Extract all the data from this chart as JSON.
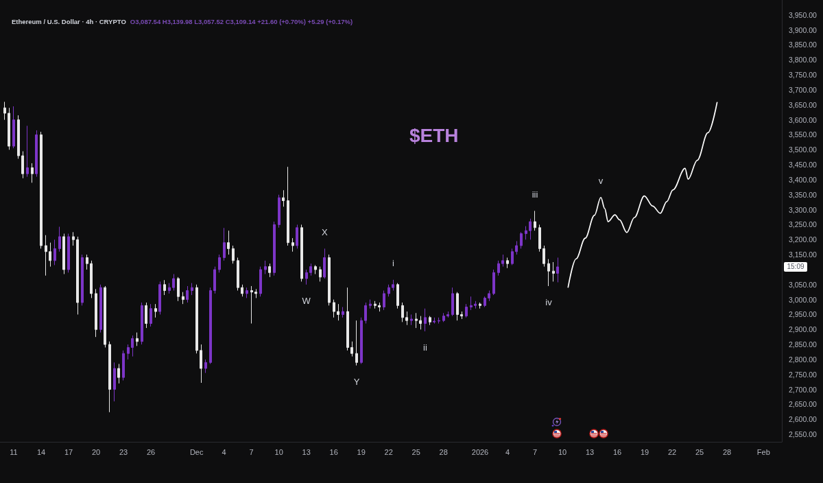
{
  "chart_data": {
    "type": "candlestick",
    "title": "Ethereum / U.S. Dollar · 4h · CRYPTO",
    "subtitle": "O3,087.54 H3,139.98 L3,057.52 C3,109.14 +21.60 (+0.70%) +5.29 (+0.17%)",
    "xlim": [
      "2025-11-09T12:00",
      "2026-02-03T00:00"
    ],
    "ylim": [
      2525,
      4000
    ],
    "xticks": [
      {
        "value": "2025-11-11",
        "label": "11"
      },
      {
        "value": "2025-11-14",
        "label": "14"
      },
      {
        "value": "2025-11-17",
        "label": "17"
      },
      {
        "value": "2025-11-20",
        "label": "20"
      },
      {
        "value": "2025-11-23",
        "label": "23"
      },
      {
        "value": "2025-11-26",
        "label": "26"
      },
      {
        "value": "2025-12-01",
        "label": "Dec"
      },
      {
        "value": "2025-12-04",
        "label": "4"
      },
      {
        "value": "2025-12-07",
        "label": "7"
      },
      {
        "value": "2025-12-10",
        "label": "10"
      },
      {
        "value": "2025-12-13",
        "label": "13"
      },
      {
        "value": "2025-12-16",
        "label": "16"
      },
      {
        "value": "2025-12-19",
        "label": "19"
      },
      {
        "value": "2025-12-22",
        "label": "22"
      },
      {
        "value": "2025-12-25",
        "label": "25"
      },
      {
        "value": "2025-12-28",
        "label": "28"
      },
      {
        "value": "2026-01-01",
        "label": "2026"
      },
      {
        "value": "2026-01-04",
        "label": "4"
      },
      {
        "value": "2026-01-07",
        "label": "7"
      },
      {
        "value": "2026-01-10",
        "label": "10"
      },
      {
        "value": "2026-01-13",
        "label": "13"
      },
      {
        "value": "2026-01-16",
        "label": "16"
      },
      {
        "value": "2026-01-19",
        "label": "19"
      },
      {
        "value": "2026-01-22",
        "label": "22"
      },
      {
        "value": "2026-01-25",
        "label": "25"
      },
      {
        "value": "2026-01-28",
        "label": "28"
      },
      {
        "value": "2026-02-01",
        "label": "Feb"
      }
    ],
    "yticks": [
      {
        "value": 2550,
        "label": "2,550.00"
      },
      {
        "value": 2600,
        "label": "2,600.00"
      },
      {
        "value": 2650,
        "label": "2,650.00"
      },
      {
        "value": 2700,
        "label": "2,700.00"
      },
      {
        "value": 2750,
        "label": "2,750.00"
      },
      {
        "value": 2800,
        "label": "2,800.00"
      },
      {
        "value": 2850,
        "label": "2,850.00"
      },
      {
        "value": 2900,
        "label": "2,900.00"
      },
      {
        "value": 2950,
        "label": "2,950.00"
      },
      {
        "value": 3000,
        "label": "3,000.00"
      },
      {
        "value": 3050,
        "label": "3,050.00"
      },
      {
        "value": 3150,
        "label": "3,150.00"
      },
      {
        "value": 3200,
        "label": "3,200.00"
      },
      {
        "value": 3250,
        "label": "3,250.00"
      },
      {
        "value": 3300,
        "label": "3,300.00"
      },
      {
        "value": 3350,
        "label": "3,350.00"
      },
      {
        "value": 3400,
        "label": "3,400.00"
      },
      {
        "value": 3450,
        "label": "3,450.00"
      },
      {
        "value": 3500,
        "label": "3,500.00"
      },
      {
        "value": 3550,
        "label": "3,550.00"
      },
      {
        "value": 3600,
        "label": "3,600.00"
      },
      {
        "value": 3650,
        "label": "3,650.00"
      },
      {
        "value": 3700,
        "label": "3,700.00"
      },
      {
        "value": 3750,
        "label": "3,750.00"
      },
      {
        "value": 3800,
        "label": "3,800.00"
      },
      {
        "value": 3850,
        "label": "3,850.00"
      },
      {
        "value": 3900,
        "label": "3,900.00"
      },
      {
        "value": 3950,
        "label": "3,950.00"
      }
    ],
    "grid": false,
    "marker": "none",
    "line_style": "solid",
    "series": [
      {
        "x": [
          "2025-11-10T00:00",
          "2025-11-10T12:00",
          "2025-11-11T00:00",
          "2025-11-11T12:00",
          "2025-11-12T00:00",
          "2025-11-12T12:00",
          "2025-11-13T00:00",
          "2025-11-13T12:00",
          "2025-11-14T00:00",
          "2025-11-14T12:00",
          "2025-11-15T00:00",
          "2025-11-15T12:00",
          "2025-11-16T00:00",
          "2025-11-16T12:00",
          "2025-11-17T00:00",
          "2025-11-17T12:00",
          "2025-11-18T00:00",
          "2025-11-18T12:00",
          "2025-11-19T00:00",
          "2025-11-19T12:00",
          "2025-11-20T00:00",
          "2025-11-20T12:00",
          "2025-11-21T00:00",
          "2025-11-21T12:00",
          "2025-11-22T00:00",
          "2025-11-22T12:00",
          "2025-11-23T00:00",
          "2025-11-23T12:00",
          "2025-11-24T00:00",
          "2025-11-24T12:00",
          "2025-11-25T00:00",
          "2025-11-25T12:00",
          "2025-11-26T00:00",
          "2025-11-26T12:00",
          "2025-11-27T00:00",
          "2025-11-27T12:00",
          "2025-11-28T00:00",
          "2025-11-28T12:00",
          "2025-11-29T00:00",
          "2025-11-29T12:00",
          "2025-11-30T00:00",
          "2025-11-30T12:00",
          "2025-12-01T00:00",
          "2025-12-01T12:00",
          "2025-12-02T00:00",
          "2025-12-02T12:00",
          "2025-12-03T00:00",
          "2025-12-03T12:00",
          "2025-12-04T00:00",
          "2025-12-04T12:00",
          "2025-12-05T00:00",
          "2025-12-05T12:00",
          "2025-12-06T00:00",
          "2025-12-06T12:00",
          "2025-12-07T00:00",
          "2025-12-07T12:00",
          "2025-12-08T00:00",
          "2025-12-08T12:00",
          "2025-12-09T00:00",
          "2025-12-09T12:00",
          "2025-12-10T00:00",
          "2025-12-10T12:00",
          "2025-12-11T00:00",
          "2025-12-11T12:00",
          "2025-12-12T00:00",
          "2025-12-12T12:00",
          "2025-12-13T00:00",
          "2025-12-13T12:00",
          "2025-12-14T00:00",
          "2025-12-14T12:00",
          "2025-12-15T00:00",
          "2025-12-15T12:00",
          "2025-12-16T00:00",
          "2025-12-16T12:00",
          "2025-12-17T00:00",
          "2025-12-17T12:00",
          "2025-12-18T00:00",
          "2025-12-18T12:00",
          "2025-12-19T00:00",
          "2025-12-19T12:00",
          "2025-12-20T00:00",
          "2025-12-20T12:00",
          "2025-12-21T00:00",
          "2025-12-21T12:00",
          "2025-12-22T00:00",
          "2025-12-22T12:00",
          "2025-12-23T00:00",
          "2025-12-23T12:00",
          "2025-12-24T00:00",
          "2025-12-24T12:00",
          "2025-12-25T00:00",
          "2025-12-25T12:00",
          "2025-12-26T00:00",
          "2025-12-26T12:00",
          "2025-12-27T00:00",
          "2025-12-27T12:00",
          "2025-12-28T00:00",
          "2025-12-28T12:00",
          "2025-12-29T00:00",
          "2025-12-29T12:00",
          "2025-12-30T00:00",
          "2025-12-30T12:00",
          "2025-12-31T00:00",
          "2025-12-31T12:00",
          "2026-01-01T00:00",
          "2026-01-01T12:00",
          "2026-01-02T00:00",
          "2026-01-02T12:00",
          "2026-01-03T00:00",
          "2026-01-03T12:00",
          "2026-01-04T00:00",
          "2026-01-04T12:00",
          "2026-01-05T00:00",
          "2026-01-05T12:00",
          "2026-01-06T00:00",
          "2026-01-06T12:00",
          "2026-01-07T00:00",
          "2026-01-07T12:00",
          "2026-01-08T00:00",
          "2026-01-08T12:00",
          "2026-01-09T00:00",
          "2026-01-09T12:00"
        ],
        "ohlc": [
          [
            3640,
            3660,
            3600,
            3622
          ],
          [
            3622,
            3640,
            3500,
            3512
          ],
          [
            3512,
            3645,
            3505,
            3600
          ],
          [
            3600,
            3615,
            3470,
            3480
          ],
          [
            3480,
            3495,
            3405,
            3420
          ],
          [
            3420,
            3580,
            3410,
            3440
          ],
          [
            3440,
            3455,
            3390,
            3420
          ],
          [
            3420,
            3565,
            3410,
            3550
          ],
          [
            3550,
            3560,
            3170,
            3180
          ],
          [
            3180,
            3215,
            3080,
            3160
          ],
          [
            3160,
            3190,
            3110,
            3130
          ],
          [
            3130,
            3200,
            3115,
            3170
          ],
          [
            3170,
            3243,
            3160,
            3210
          ],
          [
            3210,
            3220,
            3085,
            3100
          ],
          [
            3100,
            3220,
            3090,
            3210
          ],
          [
            3210,
            3225,
            3180,
            3200
          ],
          [
            3200,
            3210,
            2950,
            2990
          ],
          [
            2990,
            3150,
            2980,
            3140
          ],
          [
            3140,
            3150,
            3100,
            3120
          ],
          [
            3120,
            3130,
            3005,
            3020
          ],
          [
            3020,
            3035,
            2875,
            2900
          ],
          [
            2900,
            3050,
            2890,
            3040
          ],
          [
            3040,
            3045,
            2840,
            2850
          ],
          [
            2850,
            2860,
            2624,
            2700
          ],
          [
            2700,
            2790,
            2660,
            2770
          ],
          [
            2770,
            2785,
            2720,
            2740
          ],
          [
            2740,
            2830,
            2730,
            2820
          ],
          [
            2820,
            2850,
            2800,
            2840
          ],
          [
            2840,
            2880,
            2810,
            2870
          ],
          [
            2870,
            2890,
            2845,
            2860
          ],
          [
            2860,
            2990,
            2850,
            2980
          ],
          [
            2980,
            2990,
            2905,
            2920
          ],
          [
            2920,
            2985,
            2910,
            2970
          ],
          [
            2970,
            2985,
            2940,
            2960
          ],
          [
            2960,
            3060,
            2950,
            3050
          ],
          [
            3050,
            3065,
            3015,
            3030
          ],
          [
            3030,
            3055,
            3020,
            3040
          ],
          [
            3040,
            3085,
            3030,
            3070
          ],
          [
            3070,
            3075,
            2995,
            3010
          ],
          [
            3010,
            3025,
            2985,
            3000
          ],
          [
            3000,
            3045,
            2990,
            3030
          ],
          [
            3030,
            3055,
            3015,
            3040
          ],
          [
            3040,
            3050,
            2820,
            2830
          ],
          [
            2830,
            2850,
            2722,
            2770
          ],
          [
            2770,
            2800,
            2755,
            2790
          ],
          [
            2790,
            3040,
            2785,
            3030
          ],
          [
            3030,
            3110,
            3020,
            3100
          ],
          [
            3100,
            3150,
            3090,
            3140
          ],
          [
            3140,
            3239,
            3130,
            3190
          ],
          [
            3190,
            3230,
            3150,
            3170
          ],
          [
            3170,
            3180,
            3120,
            3130
          ],
          [
            3130,
            3140,
            3030,
            3040
          ],
          [
            3040,
            3050,
            3010,
            3020
          ],
          [
            3020,
            3040,
            3005,
            3030
          ],
          [
            3030,
            3045,
            2920,
            3025
          ],
          [
            3025,
            3035,
            3005,
            3020
          ],
          [
            3020,
            3110,
            3010,
            3100
          ],
          [
            3100,
            3130,
            3085,
            3110
          ],
          [
            3110,
            3120,
            3075,
            3090
          ],
          [
            3090,
            3260,
            3080,
            3250
          ],
          [
            3250,
            3350,
            3240,
            3340
          ],
          [
            3340,
            3365,
            3310,
            3330
          ],
          [
            3330,
            3443,
            3180,
            3190
          ],
          [
            3190,
            3205,
            3160,
            3180
          ],
          [
            3180,
            3250,
            3170,
            3240
          ],
          [
            3240,
            3250,
            3060,
            3070
          ],
          [
            3070,
            3100,
            3050,
            3090
          ],
          [
            3090,
            3120,
            3080,
            3110
          ],
          [
            3110,
            3115,
            3085,
            3100
          ],
          [
            3100,
            3110,
            3060,
            3075
          ],
          [
            3075,
            3170,
            3070,
            3140
          ],
          [
            3140,
            3150,
            2980,
            2990
          ],
          [
            2990,
            3000,
            2940,
            2960
          ],
          [
            2960,
            2985,
            2930,
            2950
          ],
          [
            2950,
            2975,
            2940,
            2960
          ],
          [
            2960,
            3040,
            2830,
            2840
          ],
          [
            2840,
            2860,
            2810,
            2820
          ],
          [
            2820,
            2930,
            2780,
            2790
          ],
          [
            2790,
            2940,
            2785,
            2930
          ],
          [
            2930,
            2990,
            2920,
            2980
          ],
          [
            2980,
            3000,
            2970,
            2985
          ],
          [
            2985,
            2995,
            2970,
            2980
          ],
          [
            2980,
            2990,
            2960,
            2975
          ],
          [
            2975,
            3030,
            2965,
            3020
          ],
          [
            3020,
            3050,
            3010,
            3040
          ],
          [
            3040,
            3066,
            3030,
            3050
          ],
          [
            3050,
            3055,
            2970,
            2980
          ],
          [
            2980,
            2990,
            2925,
            2940
          ],
          [
            2940,
            2960,
            2915,
            2930
          ],
          [
            2930,
            2950,
            2915,
            2935
          ],
          [
            2935,
            2955,
            2905,
            2930
          ],
          [
            2930,
            2945,
            2900,
            2920
          ],
          [
            2920,
            2970,
            2894,
            2940
          ],
          [
            2940,
            2945,
            2915,
            2925
          ],
          [
            2925,
            2940,
            2920,
            2928
          ],
          [
            2928,
            2940,
            2920,
            2930
          ],
          [
            2930,
            2955,
            2925,
            2945
          ],
          [
            2945,
            2960,
            2940,
            2950
          ],
          [
            2950,
            3040,
            2945,
            3020
          ],
          [
            3020,
            3025,
            2930,
            2950
          ],
          [
            2950,
            2960,
            2935,
            2945
          ],
          [
            2945,
            2985,
            2940,
            2975
          ],
          [
            2975,
            3010,
            2965,
            2980
          ],
          [
            2980,
            2995,
            2970,
            2985
          ],
          [
            2985,
            2990,
            2970,
            2980
          ],
          [
            2980,
            3010,
            2975,
            3005
          ],
          [
            3005,
            3030,
            2995,
            3020
          ],
          [
            3020,
            3100,
            3015,
            3090
          ],
          [
            3090,
            3130,
            3080,
            3120
          ],
          [
            3120,
            3150,
            3110,
            3130
          ],
          [
            3130,
            3140,
            3105,
            3120
          ],
          [
            3120,
            3170,
            3115,
            3160
          ],
          [
            3160,
            3195,
            3150,
            3180
          ],
          [
            3180,
            3225,
            3170,
            3220
          ],
          [
            3220,
            3245,
            3200,
            3230
          ],
          [
            3230,
            3270,
            3200,
            3260
          ],
          [
            3260,
            3296,
            3230,
            3240
          ],
          [
            3240,
            3250,
            3160,
            3170
          ],
          [
            3170,
            3180,
            3110,
            3120
          ],
          [
            3120,
            3135,
            3045,
            3095
          ],
          [
            3095,
            3125,
            3060,
            3087.54
          ],
          [
            3087.54,
            3139.98,
            3057.52,
            3109.14
          ]
        ],
        "colors": [
          "#e8e8e8",
          "#e8e8e8",
          "#7d35c8",
          "#e8e8e8",
          "#e8e8e8",
          "#7d35c8",
          "#e8e8e8",
          "#7d35c8",
          "#e8e8e8",
          "#e8e8e8",
          "#e8e8e8",
          "#7d35c8",
          "#7d35c8",
          "#e8e8e8",
          "#7d35c8",
          "#e8e8e8",
          "#e8e8e8",
          "#7d35c8",
          "#e8e8e8",
          "#e8e8e8",
          "#e8e8e8",
          "#7d35c8",
          "#e8e8e8",
          "#e8e8e8",
          "#7d35c8",
          "#e8e8e8",
          "#7d35c8",
          "#7d35c8",
          "#7d35c8",
          "#e8e8e8",
          "#7d35c8",
          "#e8e8e8",
          "#7d35c8",
          "#e8e8e8",
          "#7d35c8",
          "#e8e8e8",
          "#7d35c8",
          "#7d35c8",
          "#e8e8e8",
          "#e8e8e8",
          "#7d35c8",
          "#7d35c8",
          "#e8e8e8",
          "#e8e8e8",
          "#7d35c8",
          "#7d35c8",
          "#7d35c8",
          "#7d35c8",
          "#7d35c8",
          "#e8e8e8",
          "#e8e8e8",
          "#e8e8e8",
          "#e8e8e8",
          "#7d35c8",
          "#e8e8e8",
          "#e8e8e8",
          "#7d35c8",
          "#7d35c8",
          "#e8e8e8",
          "#7d35c8",
          "#7d35c8",
          "#e8e8e8",
          "#e8e8e8",
          "#e8e8e8",
          "#7d35c8",
          "#e8e8e8",
          "#7d35c8",
          "#7d35c8",
          "#e8e8e8",
          "#e8e8e8",
          "#7d35c8",
          "#e8e8e8",
          "#e8e8e8",
          "#e8e8e8",
          "#7d35c8",
          "#e8e8e8",
          "#e8e8e8",
          "#e8e8e8",
          "#7d35c8",
          "#7d35c8",
          "#7d35c8",
          "#e8e8e8",
          "#e8e8e8",
          "#7d35c8",
          "#7d35c8",
          "#7d35c8",
          "#e8e8e8",
          "#e8e8e8",
          "#e8e8e8",
          "#7d35c8",
          "#e8e8e8",
          "#e8e8e8",
          "#7d35c8",
          "#e8e8e8",
          "#7d35c8",
          "#7d35c8",
          "#7d35c8",
          "#7d35c8",
          "#7d35c8",
          "#e8e8e8",
          "#e8e8e8",
          "#7d35c8",
          "#7d35c8",
          "#7d35c8",
          "#e8e8e8",
          "#7d35c8",
          "#7d35c8",
          "#7d35c8",
          "#7d35c8",
          "#7d35c8",
          "#e8e8e8",
          "#7d35c8",
          "#7d35c8",
          "#7d35c8",
          "#7d35c8",
          "#7d35c8",
          "#e8e8e8",
          "#e8e8e8",
          "#e8e8e8",
          "#e8e8e8",
          "#e8e8e8",
          "#7d35c8"
        ]
      },
      {
        "type": "line",
        "color": "#ffffff",
        "x": [
          "2026-01-10T15:00",
          "2026-01-11T12:00",
          "2026-01-12T12:00",
          "2026-01-13T12:00",
          "2026-01-14T05:00",
          "2026-01-14T15:00",
          "2026-01-15T00:00",
          "2026-01-15T18:00",
          "2026-01-16T06:00",
          "2026-01-17T01:00",
          "2026-01-17T21:00",
          "2026-01-18T23:00",
          "2026-01-19T21:00",
          "2026-01-20T17:00",
          "2026-01-21T10:00",
          "2026-01-22T02:00",
          "2026-01-23T10:00",
          "2026-01-23T18:00",
          "2026-01-24T18:00",
          "2026-01-25T22:00",
          "2026-01-26T22:00"
        ],
        "values": [
          3041,
          3136,
          3205,
          3281,
          3341,
          3304,
          3260,
          3283,
          3266,
          3224,
          3274,
          3346,
          3312,
          3288,
          3327,
          3366,
          3438,
          3402,
          3465,
          3557,
          3658
        ]
      }
    ],
    "annotations": [
      "$ETH",
      {
        "text": "15:09",
        "y": 3109.14
      },
      {
        "text": "W",
        "x": "2025-12-13T00:00",
        "y": 3050
      },
      {
        "text": "X",
        "x": "2025-12-15T00:00",
        "y": 3170
      },
      {
        "text": "Y",
        "x": "2025-12-18T12:00",
        "y": 2780
      },
      {
        "text": "i",
        "x": "2025-12-22T12:00",
        "y": 3066
      },
      {
        "text": "ii",
        "x": "2025-12-26T00:00",
        "y": 2894
      },
      {
        "text": "iii",
        "x": "2026-01-07T00:00",
        "y": 3296
      },
      {
        "text": "iv",
        "x": "2026-01-08T12:00",
        "y": 3045
      },
      {
        "text": "v",
        "x": "2026-01-14T05:00",
        "y": 3341
      }
    ]
  }
}
